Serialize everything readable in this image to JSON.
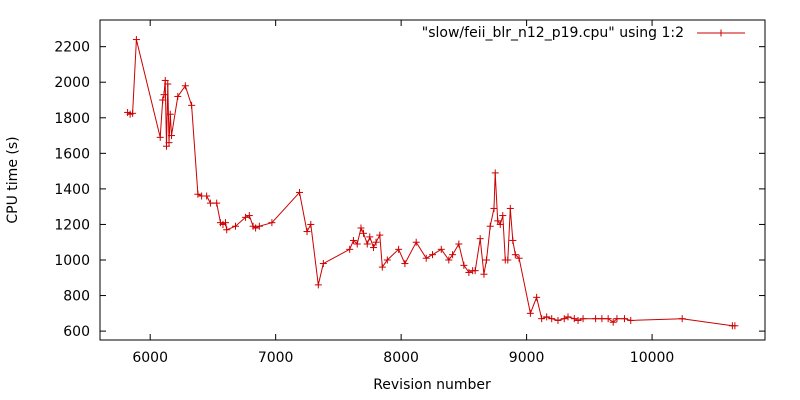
{
  "chart_data": {
    "type": "line",
    "title": "",
    "xlabel": "Revision number",
    "ylabel": "CPU time (s)",
    "xlim": [
      5600,
      10900
    ],
    "ylim": [
      550,
      2350
    ],
    "xticks": [
      6000,
      7000,
      8000,
      9000,
      10000
    ],
    "yticks": [
      600,
      800,
      1000,
      1200,
      1400,
      1600,
      1800,
      2000,
      2200
    ],
    "grid": false,
    "legend_position": "top-right",
    "series": [
      {
        "name": "\"slow/feii_blr_n12_p19.cpu\" using 1:2",
        "color": "#cc0000",
        "marker": "plus",
        "points": [
          [
            5820,
            1830
          ],
          [
            5840,
            1820
          ],
          [
            5860,
            1825
          ],
          [
            5890,
            2240
          ],
          [
            6080,
            1690
          ],
          [
            6100,
            1900
          ],
          [
            6110,
            1930
          ],
          [
            6120,
            2010
          ],
          [
            6130,
            1640
          ],
          [
            6140,
            1990
          ],
          [
            6150,
            1660
          ],
          [
            6160,
            1820
          ],
          [
            6170,
            1700
          ],
          [
            6220,
            1920
          ],
          [
            6280,
            1980
          ],
          [
            6330,
            1870
          ],
          [
            6380,
            1370
          ],
          [
            6410,
            1360
          ],
          [
            6450,
            1360
          ],
          [
            6480,
            1320
          ],
          [
            6530,
            1320
          ],
          [
            6560,
            1210
          ],
          [
            6580,
            1200
          ],
          [
            6600,
            1210
          ],
          [
            6610,
            1170
          ],
          [
            6680,
            1190
          ],
          [
            6760,
            1240
          ],
          [
            6790,
            1250
          ],
          [
            6820,
            1190
          ],
          [
            6840,
            1180
          ],
          [
            6870,
            1190
          ],
          [
            6970,
            1210
          ],
          [
            7190,
            1380
          ],
          [
            7250,
            1160
          ],
          [
            7280,
            1200
          ],
          [
            7340,
            860
          ],
          [
            7380,
            980
          ],
          [
            7590,
            1060
          ],
          [
            7620,
            1110
          ],
          [
            7650,
            1090
          ],
          [
            7680,
            1180
          ],
          [
            7700,
            1150
          ],
          [
            7730,
            1090
          ],
          [
            7750,
            1130
          ],
          [
            7780,
            1070
          ],
          [
            7800,
            1100
          ],
          [
            7830,
            1140
          ],
          [
            7850,
            960
          ],
          [
            7890,
            1000
          ],
          [
            7980,
            1060
          ],
          [
            8030,
            980
          ],
          [
            8120,
            1100
          ],
          [
            8200,
            1010
          ],
          [
            8250,
            1030
          ],
          [
            8320,
            1060
          ],
          [
            8380,
            1000
          ],
          [
            8410,
            1030
          ],
          [
            8460,
            1090
          ],
          [
            8500,
            970
          ],
          [
            8540,
            930
          ],
          [
            8570,
            940
          ],
          [
            8590,
            940
          ],
          [
            8630,
            1120
          ],
          [
            8660,
            920
          ],
          [
            8680,
            1000
          ],
          [
            8710,
            1190
          ],
          [
            8740,
            1290
          ],
          [
            8750,
            1490
          ],
          [
            8770,
            1220
          ],
          [
            8790,
            1200
          ],
          [
            8810,
            1250
          ],
          [
            8830,
            1000
          ],
          [
            8850,
            1000
          ],
          [
            8870,
            1290
          ],
          [
            8890,
            1110
          ],
          [
            8910,
            1030
          ],
          [
            8940,
            1010
          ],
          [
            9030,
            700
          ],
          [
            9080,
            790
          ],
          [
            9120,
            670
          ],
          [
            9160,
            680
          ],
          [
            9200,
            670
          ],
          [
            9250,
            660
          ],
          [
            9300,
            670
          ],
          [
            9330,
            680
          ],
          [
            9380,
            670
          ],
          [
            9410,
            660
          ],
          [
            9450,
            670
          ],
          [
            9550,
            670
          ],
          [
            9600,
            670
          ],
          [
            9650,
            670
          ],
          [
            9690,
            650
          ],
          [
            9720,
            670
          ],
          [
            9780,
            670
          ],
          [
            9830,
            660
          ],
          [
            10240,
            670
          ],
          [
            10640,
            630
          ],
          [
            10660,
            630
          ]
        ]
      }
    ]
  }
}
